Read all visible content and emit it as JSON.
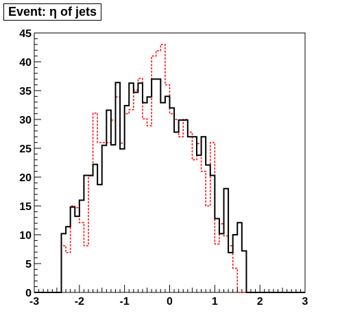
{
  "chart_data": {
    "type": "histogram-step",
    "title": "Event: η of jets",
    "xlabel": "",
    "ylabel": "",
    "xlim": [
      -3,
      3
    ],
    "ylim": [
      0,
      45
    ],
    "x_ticks": [
      -3,
      -2,
      -1,
      0,
      1,
      2,
      3
    ],
    "y_ticks": [
      0,
      5,
      10,
      15,
      20,
      25,
      30,
      35,
      40,
      45
    ],
    "bin_width": 0.1,
    "x_start": -3,
    "grid": false,
    "legend": "none",
    "series": [
      {
        "style": "solid",
        "color": "#000000",
        "values": [
          0,
          0,
          0,
          0,
          0,
          0,
          10.2,
          11.4,
          14.8,
          13.2,
          16,
          20.3,
          20.3,
          22.2,
          18.7,
          25.5,
          31.6,
          25.6,
          36.4,
          24.9,
          32.4,
          36.3,
          34.7,
          36.3,
          32.9,
          33.9,
          37,
          37,
          32.9,
          34,
          32,
          27.8,
          29.9,
          29.9,
          27,
          27,
          23.8,
          27,
          22.1,
          20.3,
          12.8,
          10.2,
          18,
          6.9,
          10,
          12.1,
          7.2,
          0,
          0,
          0,
          0,
          0,
          0,
          0,
          0,
          0,
          0,
          0,
          0,
          0
        ]
      },
      {
        "style": "dashed",
        "color": "#ff0000",
        "values": [
          0,
          0,
          0,
          0,
          0,
          0,
          8.1,
          6.9,
          15,
          14.7,
          12.1,
          8.1,
          20.2,
          31.1,
          26,
          26,
          26,
          29.9,
          33.9,
          25.9,
          31,
          31.7,
          35.1,
          37.1,
          30.1,
          28.9,
          41,
          41.9,
          43,
          36,
          31,
          30,
          27,
          30,
          27.8,
          23,
          25.8,
          21,
          15,
          26,
          8.4,
          11.9,
          9.8,
          8.1,
          4.2,
          0,
          0,
          0,
          0,
          0,
          0,
          0,
          0,
          0,
          0,
          0,
          0,
          0,
          0,
          0
        ]
      }
    ]
  }
}
